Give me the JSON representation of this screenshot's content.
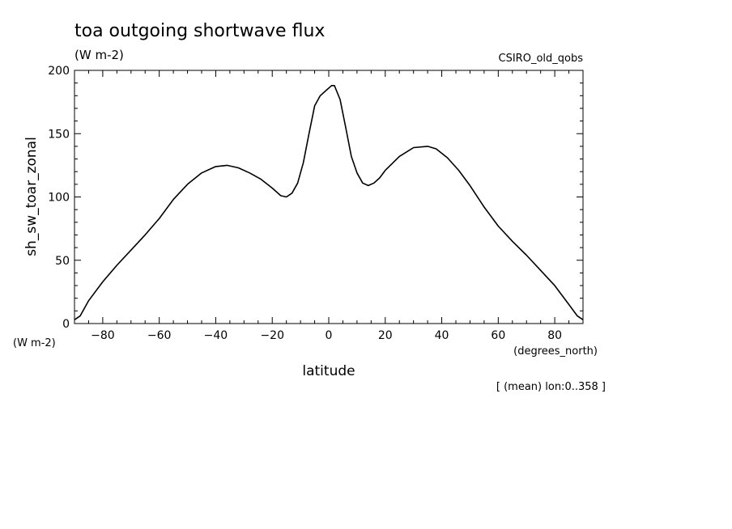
{
  "chart_data": {
    "type": "line",
    "title": "toa outgoing shortwave flux",
    "subtitle": "(W m-2)",
    "source": "CSIRO_old_qobs",
    "ylabel": "sh_sw_toar_zonal",
    "yunits": "(W m-2)",
    "xlabel": "latitude",
    "xunits": "(degrees_north)",
    "note": "[ (mean) lon:0..358 ]",
    "xlim": [
      -90,
      90
    ],
    "ylim": [
      0,
      200
    ],
    "xticks": [
      -80,
      -60,
      -40,
      -20,
      0,
      20,
      40,
      60,
      80
    ],
    "yticks": [
      0,
      50,
      100,
      150,
      200
    ],
    "grid": false,
    "series": [
      {
        "x": [
          -90,
          -88,
          -85,
          -80,
          -75,
          -70,
          -65,
          -60,
          -55,
          -50,
          -45,
          -40,
          -36,
          -32,
          -28,
          -24,
          -20,
          -17,
          -15,
          -13,
          -11,
          -9,
          -7,
          -5,
          -3,
          -1,
          1,
          2,
          4,
          6,
          8,
          10,
          12,
          14,
          16,
          18,
          20,
          25,
          30,
          35,
          38,
          42,
          46,
          50,
          55,
          60,
          65,
          70,
          75,
          80,
          85,
          88,
          90
        ],
        "y": [
          3,
          6,
          18,
          33,
          46,
          58,
          70,
          83,
          98,
          110,
          119,
          124,
          125,
          123,
          119,
          114,
          107,
          101,
          100,
          103,
          111,
          127,
          150,
          172,
          180,
          184,
          188,
          188,
          177,
          155,
          132,
          119,
          111,
          109,
          111,
          115,
          121,
          132,
          139,
          140,
          138,
          131,
          121,
          109,
          92,
          77,
          65,
          54,
          42,
          30,
          15,
          6,
          3
        ]
      }
    ]
  }
}
